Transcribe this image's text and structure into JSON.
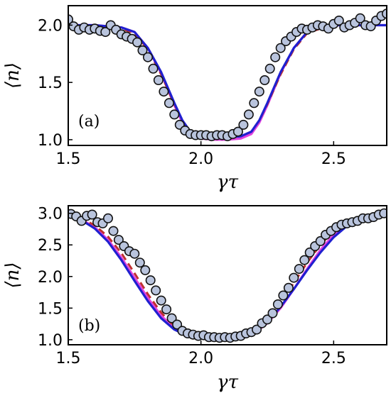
{
  "chart_data": [
    {
      "type": "line",
      "panel_label": "(a)",
      "xlabel": "γτ",
      "ylabel": "⟨n⟩",
      "xlim": [
        1.5,
        2.7
      ],
      "ylim": [
        0.95,
        2.17
      ],
      "xticks": [
        1.5,
        2.0,
        2.5
      ],
      "xtick_labels": [
        "1.5",
        "2.0",
        "2.5"
      ],
      "yticks": [
        1.0,
        1.5,
        2.0
      ],
      "ytick_labels": [
        "1.0",
        "1.5",
        "2.0"
      ],
      "grid": false,
      "curves": [
        {
          "color": "#e040e0",
          "style": "solid",
          "x": [
            1.5,
            1.6,
            1.7,
            1.75,
            1.8,
            1.85,
            1.9,
            1.93,
            1.96,
            2.0,
            2.05,
            2.1,
            2.15,
            2.19,
            2.22,
            2.25,
            2.3,
            2.35,
            2.4,
            2.45,
            2.5,
            2.6,
            2.7
          ],
          "y": [
            2.0,
            2.0,
            1.98,
            1.94,
            1.8,
            1.58,
            1.3,
            1.15,
            1.05,
            1.01,
            1.0,
            1.0,
            1.01,
            1.05,
            1.15,
            1.3,
            1.58,
            1.8,
            1.94,
            1.98,
            2.0,
            2.0,
            2.0
          ]
        },
        {
          "color": "#c03030",
          "style": "dashed",
          "x": [
            1.5,
            1.6,
            1.7,
            1.75,
            1.8,
            1.85,
            1.9,
            1.93,
            1.96,
            2.0,
            2.05,
            2.1,
            2.15,
            2.19,
            2.22,
            2.25,
            2.3,
            2.35,
            2.4,
            2.45,
            2.5,
            2.6,
            2.7
          ],
          "y": [
            2.0,
            2.0,
            1.97,
            1.93,
            1.79,
            1.57,
            1.31,
            1.17,
            1.07,
            1.03,
            1.02,
            1.02,
            1.03,
            1.07,
            1.17,
            1.31,
            1.57,
            1.79,
            1.93,
            1.97,
            2.0,
            2.0,
            2.0
          ]
        },
        {
          "color": "#2020d0",
          "style": "solid",
          "x": [
            1.5,
            1.6,
            1.7,
            1.75,
            1.8,
            1.85,
            1.9,
            1.93,
            1.96,
            2.0,
            2.05,
            2.1,
            2.15,
            2.19,
            2.22,
            2.25,
            2.3,
            2.35,
            2.4,
            2.45,
            2.5,
            2.6,
            2.7
          ],
          "y": [
            2.0,
            2.0,
            1.98,
            1.94,
            1.8,
            1.59,
            1.32,
            1.17,
            1.07,
            1.03,
            1.02,
            1.02,
            1.03,
            1.07,
            1.17,
            1.32,
            1.59,
            1.8,
            1.94,
            1.98,
            2.0,
            2.0,
            2.0
          ]
        }
      ],
      "points": {
        "x": [
          1.5,
          1.52,
          1.54,
          1.56,
          1.58,
          1.6,
          1.62,
          1.64,
          1.66,
          1.68,
          1.7,
          1.72,
          1.74,
          1.76,
          1.78,
          1.8,
          1.82,
          1.84,
          1.86,
          1.88,
          1.9,
          1.92,
          1.94,
          1.96,
          1.98,
          2.0,
          2.02,
          2.04,
          2.06,
          2.08,
          2.1,
          2.12,
          2.14,
          2.16,
          2.18,
          2.2,
          2.22,
          2.24,
          2.26,
          2.28,
          2.3,
          2.32,
          2.34,
          2.36,
          2.38,
          2.4,
          2.42,
          2.44,
          2.46,
          2.48,
          2.5,
          2.52,
          2.54,
          2.56,
          2.58,
          2.6,
          2.62,
          2.64,
          2.66,
          2.68,
          2.7
        ],
        "y": [
          2.05,
          1.99,
          1.96,
          1.98,
          1.96,
          1.97,
          1.95,
          1.94,
          2.0,
          1.96,
          1.92,
          1.9,
          1.88,
          1.85,
          1.78,
          1.72,
          1.62,
          1.52,
          1.42,
          1.32,
          1.22,
          1.13,
          1.08,
          1.05,
          1.04,
          1.04,
          1.04,
          1.03,
          1.04,
          1.04,
          1.03,
          1.05,
          1.07,
          1.13,
          1.22,
          1.32,
          1.42,
          1.52,
          1.62,
          1.72,
          1.8,
          1.86,
          1.9,
          1.94,
          1.97,
          1.96,
          1.98,
          2.0,
          1.99,
          1.97,
          2.01,
          2.04,
          1.98,
          2.0,
          2.02,
          2.06,
          2.0,
          1.99,
          2.04,
          2.08,
          2.1
        ]
      }
    },
    {
      "type": "line",
      "panel_label": "(b)",
      "xlabel": "γτ",
      "ylabel": "⟨n⟩",
      "xlim": [
        1.5,
        2.7
      ],
      "ylim": [
        0.92,
        3.12
      ],
      "xticks": [
        1.5,
        2.0,
        2.5
      ],
      "xtick_labels": [
        "1.5",
        "2.0",
        "2.5"
      ],
      "yticks": [
        1.0,
        1.5,
        2.0,
        2.5,
        3.0
      ],
      "ytick_labels": [
        "1.0",
        "1.5",
        "2.0",
        "2.5",
        "3.0"
      ],
      "grid": false,
      "curves": [
        {
          "color": "#e040e0",
          "style": "solid",
          "x": [
            1.5,
            1.55,
            1.6,
            1.65,
            1.7,
            1.75,
            1.8,
            1.85,
            1.9,
            1.95,
            2.0,
            2.05,
            2.1,
            2.15,
            2.2,
            2.25,
            2.3,
            2.35,
            2.4,
            2.45,
            2.5,
            2.55,
            2.6,
            2.65,
            2.7
          ],
          "y": [
            2.96,
            2.9,
            2.78,
            2.58,
            2.3,
            1.98,
            1.66,
            1.38,
            1.18,
            1.07,
            1.02,
            1.01,
            1.01,
            1.03,
            1.1,
            1.26,
            1.5,
            1.8,
            2.12,
            2.42,
            2.66,
            2.83,
            2.92,
            2.96,
            2.98
          ]
        },
        {
          "color": "#c03030",
          "style": "dashed",
          "x": [
            1.5,
            1.55,
            1.6,
            1.65,
            1.7,
            1.75,
            1.8,
            1.85,
            1.9,
            1.95,
            2.0,
            2.05,
            2.1,
            2.15,
            2.2,
            2.25,
            2.3,
            2.35,
            2.4,
            2.45,
            2.5,
            2.55,
            2.6,
            2.65,
            2.7
          ],
          "y": [
            2.97,
            2.92,
            2.81,
            2.63,
            2.37,
            2.05,
            1.72,
            1.43,
            1.21,
            1.09,
            1.03,
            1.02,
            1.02,
            1.05,
            1.14,
            1.32,
            1.58,
            1.9,
            2.22,
            2.5,
            2.72,
            2.86,
            2.93,
            2.97,
            2.99
          ]
        },
        {
          "color": "#2020d0",
          "style": "solid",
          "x": [
            1.5,
            1.55,
            1.6,
            1.65,
            1.7,
            1.75,
            1.8,
            1.85,
            1.9,
            1.95,
            2.0,
            2.05,
            2.1,
            2.15,
            2.2,
            2.25,
            2.3,
            2.35,
            2.4,
            2.45,
            2.5,
            2.55,
            2.6,
            2.65,
            2.7
          ],
          "y": [
            2.96,
            2.89,
            2.76,
            2.55,
            2.26,
            1.93,
            1.61,
            1.34,
            1.16,
            1.06,
            1.02,
            1.01,
            1.01,
            1.03,
            1.11,
            1.28,
            1.52,
            1.8,
            2.1,
            2.38,
            2.62,
            2.8,
            2.9,
            2.95,
            2.97
          ]
        }
      ],
      "points": {
        "x": [
          1.51,
          1.53,
          1.55,
          1.57,
          1.59,
          1.61,
          1.63,
          1.65,
          1.67,
          1.69,
          1.71,
          1.73,
          1.75,
          1.77,
          1.79,
          1.81,
          1.83,
          1.85,
          1.87,
          1.89,
          1.91,
          1.93,
          1.95,
          1.97,
          1.99,
          2.01,
          2.03,
          2.05,
          2.07,
          2.09,
          2.11,
          2.13,
          2.15,
          2.17,
          2.19,
          2.21,
          2.23,
          2.25,
          2.27,
          2.29,
          2.31,
          2.33,
          2.35,
          2.37,
          2.39,
          2.41,
          2.43,
          2.45,
          2.47,
          2.49,
          2.51,
          2.53,
          2.55,
          2.57,
          2.59,
          2.61,
          2.63,
          2.65,
          2.67,
          2.69
        ],
        "y": [
          2.99,
          2.95,
          2.88,
          2.96,
          2.98,
          2.86,
          2.84,
          2.92,
          2.72,
          2.58,
          2.48,
          2.4,
          2.36,
          2.22,
          2.1,
          1.94,
          1.78,
          1.62,
          1.48,
          1.34,
          1.24,
          1.14,
          1.1,
          1.08,
          1.06,
          1.07,
          1.04,
          1.04,
          1.03,
          1.04,
          1.03,
          1.05,
          1.06,
          1.1,
          1.12,
          1.16,
          1.26,
          1.32,
          1.42,
          1.56,
          1.7,
          1.82,
          1.98,
          2.12,
          2.26,
          2.38,
          2.48,
          2.56,
          2.66,
          2.72,
          2.78,
          2.82,
          2.84,
          2.86,
          2.88,
          2.92,
          2.92,
          2.94,
          2.98,
          3.0
        ]
      }
    }
  ]
}
